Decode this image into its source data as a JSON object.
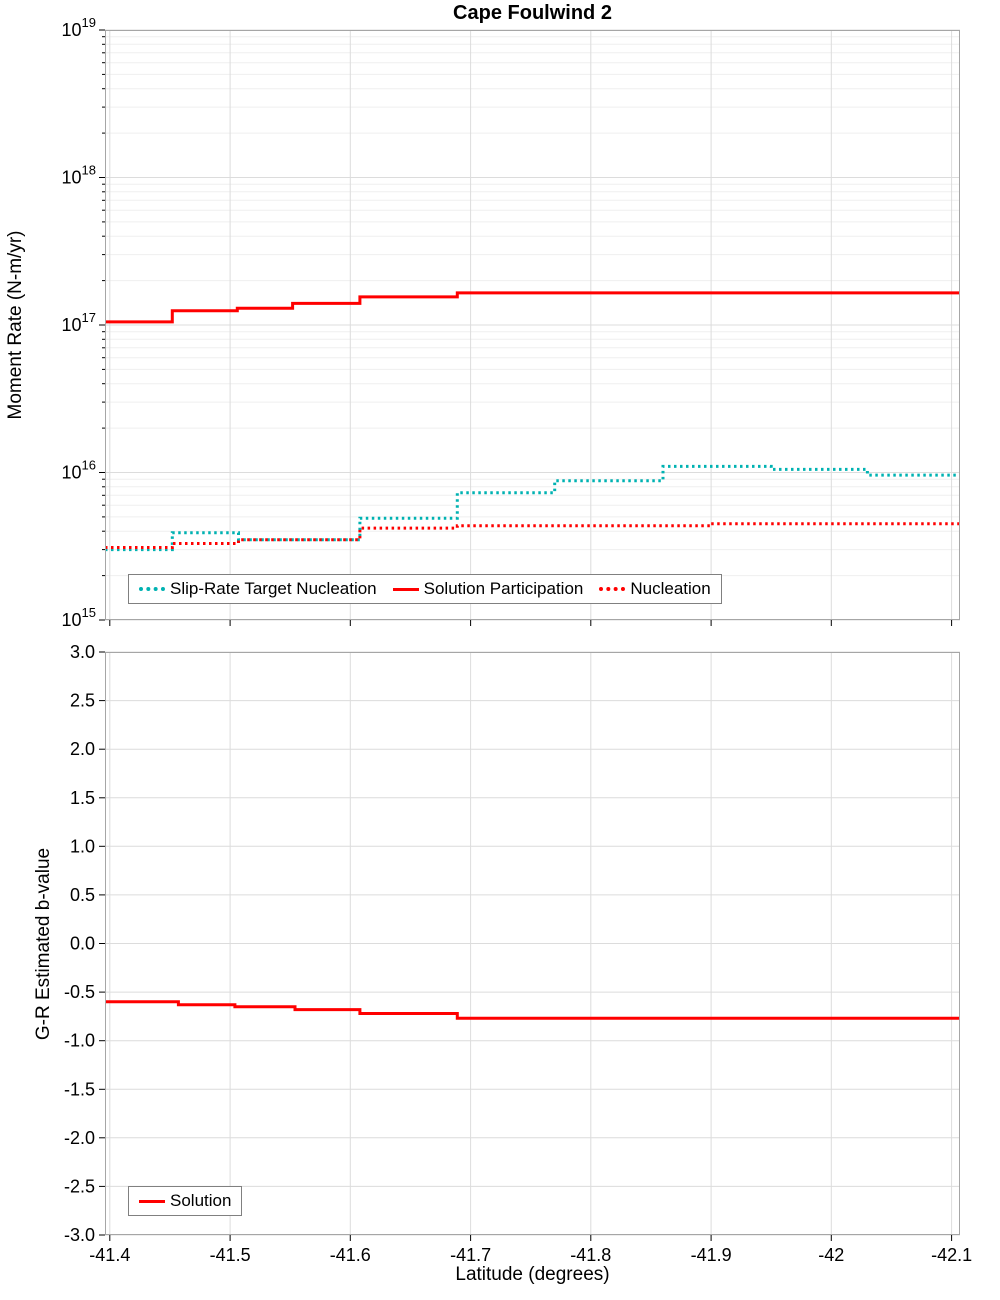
{
  "title": "Cape Foulwind 2",
  "xlabel": "Latitude (degrees)",
  "colors": {
    "red": "#ff0000",
    "teal": "#00b2b2",
    "grid": "#dcdcdc",
    "grid_minor": "#efefef",
    "axis": "#a6a6a6",
    "text": "#000000"
  },
  "chart_data": [
    {
      "type": "line",
      "subtype": "step",
      "title": "Cape Foulwind 2",
      "ylabel": "Moment Rate (N-m/yr)",
      "yscale": "log",
      "ylim_exp": [
        15,
        19
      ],
      "y_tick_base": "10",
      "y_tick_exponents": [
        "15",
        "16",
        "17",
        "18",
        "19"
      ],
      "xlim": [
        -41.396,
        -42.107
      ],
      "x_ticks": [
        -41.4,
        -41.5,
        -41.6,
        -41.7,
        -41.8,
        -41.9,
        -42.0,
        -42.1
      ],
      "grid": true,
      "legend_position": "bottom-left-inside",
      "series": [
        {
          "name": "Slip-Rate Target Nucleation",
          "color": "#00b2b2",
          "style": "dotted",
          "edges": [
            -41.396,
            -41.452,
            -41.507,
            -41.608,
            -41.689,
            -41.77,
            -41.86,
            -41.95,
            -42.03,
            -42.107
          ],
          "values": [
            3000000000000000.0,
            3900000000000000.0,
            3500000000000000.0,
            4900000000000000.0,
            7300000000000000.0,
            8800000000000000.0,
            1.1e+16,
            1.05e+16,
            9600000000000000.0
          ]
        },
        {
          "name": "Solution Participation",
          "color": "#ff0000",
          "style": "solid",
          "edges": [
            -41.396,
            -41.452,
            -41.506,
            -41.552,
            -41.608,
            -41.689,
            -42.107
          ],
          "values": [
            1.05e+17,
            1.25e+17,
            1.3e+17,
            1.4e+17,
            1.55e+17,
            1.65e+17
          ]
        },
        {
          "name": "Nucleation",
          "color": "#ff0000",
          "style": "dotted",
          "edges": [
            -41.396,
            -41.452,
            -41.507,
            -41.608,
            -41.689,
            -41.9,
            -42.107
          ],
          "values": [
            3100000000000000.0,
            3300000000000000.0,
            3500000000000000.0,
            4200000000000000.0,
            4350000000000000.0,
            4500000000000000.0
          ]
        }
      ]
    },
    {
      "type": "line",
      "subtype": "step",
      "ylabel": "G-R Estimated b-value",
      "yscale": "linear",
      "ylim": [
        -3.0,
        3.0
      ],
      "y_ticks": [
        3.0,
        2.5,
        2.0,
        1.5,
        1.0,
        0.5,
        0.0,
        -0.5,
        -1.0,
        -1.5,
        -2.0,
        -2.5,
        -3.0
      ],
      "y_tick_labels": [
        "3.0",
        "2.5",
        "2.0",
        "1.5",
        "1.0",
        "0.5",
        "0.0",
        "-0.5",
        "-1.0",
        "-1.5",
        "-2.0",
        "-2.5",
        "-3.0"
      ],
      "xlim": [
        -41.396,
        -42.107
      ],
      "x_ticks": [
        -41.4,
        -41.5,
        -41.6,
        -41.7,
        -41.8,
        -41.9,
        -42.0,
        -42.1
      ],
      "x_tick_labels": [
        "-41.4",
        "-41.5",
        "-41.6",
        "-41.7",
        "-41.8",
        "-41.9",
        "-42",
        "-42.1"
      ],
      "xlabel": "Latitude (degrees)",
      "grid": true,
      "legend_position": "bottom-left-inside",
      "series": [
        {
          "name": "Solution",
          "color": "#ff0000",
          "style": "solid",
          "edges": [
            -41.396,
            -41.457,
            -41.504,
            -41.554,
            -41.608,
            -41.689,
            -42.107
          ],
          "values": [
            -0.6,
            -0.63,
            -0.65,
            -0.68,
            -0.72,
            -0.77
          ]
        }
      ]
    }
  ]
}
